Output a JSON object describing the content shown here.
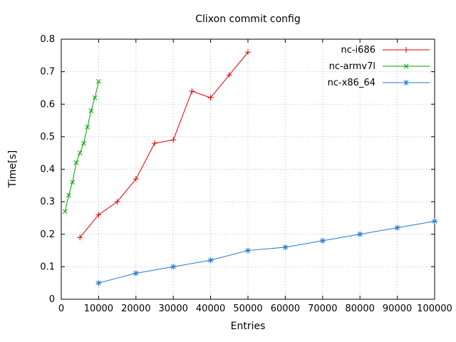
{
  "window": {
    "background": "#ffffff"
  },
  "chart_data": {
    "type": "line",
    "title": "Clixon commit config",
    "xlabel": "Entries",
    "ylabel": "Time[s]",
    "xlim": [
      0,
      100000
    ],
    "ylim": [
      0,
      0.8
    ],
    "xticks": [
      0,
      10000,
      20000,
      30000,
      40000,
      50000,
      60000,
      70000,
      80000,
      90000,
      100000
    ],
    "yticks": [
      0,
      0.1,
      0.2,
      0.3,
      0.4,
      0.5,
      0.6,
      0.7,
      0.8
    ],
    "grid": true,
    "grid_style": "dotted",
    "grid_color": "#b9b9b9",
    "border_color": "#000000",
    "legend_position": "top-right-inside",
    "series": [
      {
        "name": "nc-i686",
        "color": "#dd0000",
        "marker": "plus",
        "x": [
          5000,
          10000,
          15000,
          20000,
          25000,
          30000,
          35000,
          40000,
          45000,
          50000
        ],
        "y": [
          0.19,
          0.26,
          0.3,
          0.37,
          0.48,
          0.49,
          0.64,
          0.62,
          0.69,
          0.76
        ]
      },
      {
        "name": "nc-armv7l",
        "color": "#00a000",
        "marker": "x",
        "x": [
          1000,
          2000,
          3000,
          4000,
          5000,
          6000,
          7000,
          8000,
          9000,
          10000
        ],
        "y": [
          0.27,
          0.32,
          0.36,
          0.42,
          0.45,
          0.48,
          0.53,
          0.58,
          0.62,
          0.67
        ]
      },
      {
        "name": "nc-x86_64",
        "color": "#2277cc",
        "marker": "asterisk",
        "x": [
          10000,
          20000,
          30000,
          40000,
          50000,
          60000,
          70000,
          80000,
          90000,
          100000
        ],
        "y": [
          0.05,
          0.08,
          0.1,
          0.12,
          0.15,
          0.16,
          0.18,
          0.2,
          0.22,
          0.24
        ]
      }
    ]
  }
}
